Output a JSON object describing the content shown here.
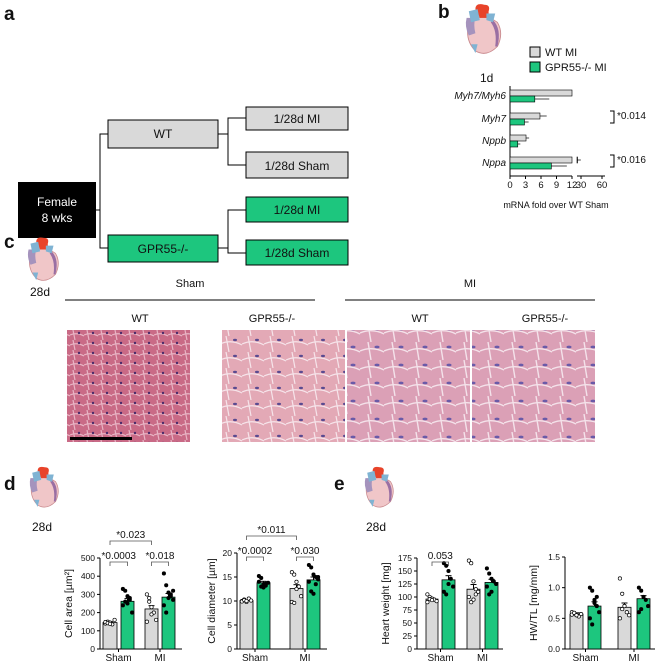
{
  "panels": {
    "a": "a",
    "b": "b",
    "c": "c",
    "d": "d",
    "e": "e"
  },
  "colors": {
    "wt": "#d9d9d9",
    "ko": "#1dc67e",
    "black": "#000000"
  },
  "scheme": {
    "root": "Female\n8 wks",
    "root_line1": "Female",
    "root_line2": "8 wks",
    "wt": "WT",
    "ko": "GPR55-/-",
    "wt_mi": "1/28d MI",
    "wt_sham": "1/28d Sham",
    "ko_mi": "1/28d MI",
    "ko_sham": "1/28d Sham"
  },
  "timepoints": {
    "b": "1d",
    "c": "28d",
    "d": "28d",
    "e": "28d"
  },
  "legend": {
    "wt": "WT MI",
    "ko": "GPR55-/- MI"
  },
  "histology": {
    "groups": [
      "Sham",
      "MI"
    ],
    "genotypes": [
      "WT",
      "GPR55-/-",
      "WT",
      "GPR55-/-"
    ]
  },
  "chart_data": [
    {
      "id": "b",
      "type": "bar",
      "orientation": "horizontal",
      "categories": [
        "Myh7/Myh6",
        "Myh7",
        "Nppb",
        "Nppa"
      ],
      "series": [
        {
          "name": "WT MI",
          "values": [
            12,
            5.8,
            3.1,
            27
          ],
          "sem": [
            0,
            1.3,
            0.6,
            4
          ]
        },
        {
          "name": "GPR55-/- MI",
          "values": [
            4.8,
            2.8,
            1.5,
            8
          ],
          "sem": [
            2.8,
            0.8,
            0.5,
            3
          ]
        }
      ],
      "xlabel": "mRNA fold over WT Sham",
      "xticks": [
        "0",
        "3",
        "6",
        "9",
        "12",
        "30",
        "60"
      ],
      "axis_break": [
        12,
        30
      ],
      "annotations": [
        {
          "row": "Myh7",
          "text": "*0.014"
        },
        {
          "row": "Nppa",
          "text": "*0.016"
        }
      ]
    },
    {
      "id": "d1",
      "type": "bar",
      "categories": [
        "Sham",
        "MI"
      ],
      "ylabel": "Cell area [µm²]",
      "ylabel_main": "Cell area [µm",
      "ylabel_sup": "2",
      "ylabel_end": "]",
      "ylim": [
        0,
        500
      ],
      "yticks": [
        "0",
        "100",
        "200",
        "300",
        "400",
        "500"
      ],
      "series": [
        {
          "values": [
            145,
            220
          ],
          "sem": [
            5,
            18
          ],
          "points": [
            [
              140,
              150,
              145,
              135,
              160,
              148,
              142,
              138
            ],
            [
              300,
              280,
              230,
              200,
              160,
              150,
              260,
              190
            ]
          ]
        },
        {
          "values": [
            262,
            285
          ],
          "sem": [
            15,
            20
          ],
          "points": [
            [
              330,
              320,
              250,
              280,
              200,
              240,
              260,
              290,
              270
            ],
            [
              415,
              350,
              310,
              290,
              270,
              240,
              200,
              280,
              300,
              320
            ]
          ]
        }
      ],
      "brackets": [
        {
          "text": "*0.0003",
          "from": [
            0,
            0
          ],
          "to": [
            0,
            1
          ],
          "level": 0
        },
        {
          "text": "*0.018",
          "from": [
            1,
            0
          ],
          "to": [
            1,
            1
          ],
          "level": 0
        },
        {
          "text": "*0.023",
          "from": [
            0,
            0
          ],
          "to": [
            1,
            0
          ],
          "level": 1
        }
      ]
    },
    {
      "id": "d2",
      "type": "bar",
      "categories": [
        "Sham",
        "MI"
      ],
      "ylabel": "Cell diameter [µm]",
      "ylim": [
        0,
        20
      ],
      "yticks": [
        "0",
        "5",
        "10",
        "15",
        "20"
      ],
      "series": [
        {
          "values": [
            10.1,
            12.6
          ],
          "sem": [
            0.15,
            0.8
          ],
          "points": [
            [
              10,
              10.3,
              9.8,
              10.5,
              10.1,
              9.9,
              10.2,
              10
            ],
            [
              16,
              15.5,
              14,
              13,
              11,
              9.8,
              9.6,
              12.5
            ]
          ]
        },
        {
          "values": [
            13.8,
            14.4
          ],
          "sem": [
            0.3,
            0.6
          ],
          "points": [
            [
              15.2,
              14.8,
              13.5,
              13.2,
              13.8,
              14,
              13,
              12.8,
              13.6
            ],
            [
              17.5,
              17,
              15.5,
              15,
              14.5,
              14,
              12,
              11.5,
              13.5,
              15
            ]
          ]
        }
      ],
      "brackets": [
        {
          "text": "*0.0002",
          "from": [
            0,
            0
          ],
          "to": [
            0,
            1
          ],
          "level": 0
        },
        {
          "text": "*0.030",
          "from": [
            1,
            0
          ],
          "to": [
            1,
            1
          ],
          "level": 0
        },
        {
          "text": "*0.011",
          "from": [
            0,
            0
          ],
          "to": [
            1,
            0
          ],
          "level": 1
        }
      ]
    },
    {
      "id": "e1",
      "type": "bar",
      "categories": [
        "Sham",
        "MI"
      ],
      "ylabel": "Heart weight [mg]",
      "ylim": [
        0,
        175
      ],
      "yticks": [
        "0",
        "25",
        "50",
        "75",
        "100",
        "125",
        "150",
        "175"
      ],
      "series": [
        {
          "values": [
            96,
            115
          ],
          "sem": [
            2,
            9
          ],
          "points": [
            [
              105,
              100,
              97,
              95,
              92,
              90,
              96,
              94
            ],
            [
              170,
              165,
              130,
              115,
              110,
              100,
              90,
              95,
              105
            ]
          ]
        },
        {
          "values": [
            133,
            128
          ],
          "sem": [
            8,
            6
          ],
          "points": [
            [
              165,
              160,
              150,
              135,
              120,
              110,
              105,
              125
            ],
            [
              155,
              145,
              135,
              130,
              125,
              120,
              105,
              110
            ]
          ]
        }
      ],
      "brackets": [
        {
          "text": "0.053",
          "from": [
            0,
            0
          ],
          "to": [
            0,
            1
          ],
          "level": 0
        }
      ]
    },
    {
      "id": "e2",
      "type": "bar",
      "categories": [
        "Sham",
        "MI"
      ],
      "ylabel": "HW/TL [mg/mm]",
      "ylim": [
        0,
        1.5
      ],
      "yticks": [
        "0.0",
        "0.5",
        "1.0",
        "1.5"
      ],
      "series": [
        {
          "values": [
            0.57,
            0.68
          ],
          "sem": [
            0.02,
            0.07
          ],
          "points": [
            [
              0.6,
              0.58,
              0.55,
              0.53,
              0.57,
              0.56,
              0.59,
              0.55
            ],
            [
              1.15,
              0.9,
              0.7,
              0.6,
              0.55,
              0.5,
              0.65,
              0.7
            ]
          ]
        },
        {
          "values": [
            0.7,
            0.82
          ],
          "sem": [
            0.07,
            0.05
          ],
          "points": [
            [
              1.0,
              0.95,
              0.8,
              0.7,
              0.6,
              0.5,
              0.4,
              0.75,
              0.85
            ],
            [
              1.0,
              0.95,
              0.85,
              0.8,
              0.7,
              0.6,
              0.65
            ]
          ]
        }
      ],
      "brackets": []
    }
  ]
}
